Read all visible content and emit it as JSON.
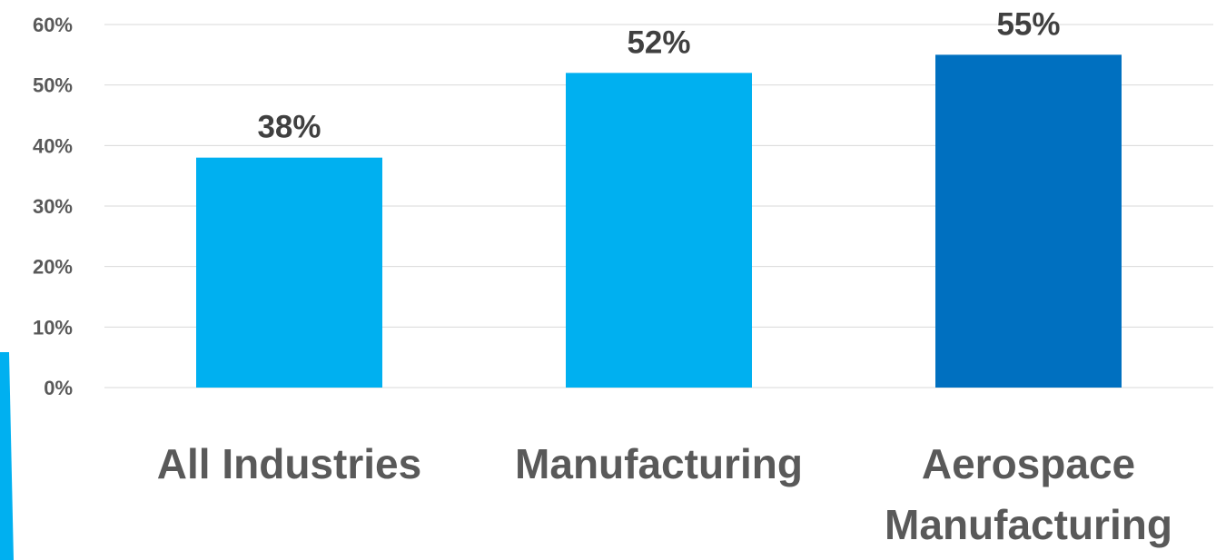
{
  "chart_data": {
    "type": "bar",
    "categories": [
      [
        "All Industries"
      ],
      [
        "Manufacturing"
      ],
      [
        "Aerospace",
        "Manufacturing"
      ]
    ],
    "values": [
      38,
      52,
      55
    ],
    "data_labels": [
      "38%",
      "52%",
      "55%"
    ],
    "ylim": [
      0,
      60
    ],
    "yticks": [
      0,
      10,
      20,
      30,
      40,
      50,
      60
    ],
    "ytick_labels": [
      "0%",
      "10%",
      "20%",
      "30%",
      "40%",
      "50%",
      "60%"
    ],
    "grid": true,
    "legend": "none",
    "title": "",
    "xlabel": "",
    "ylabel": "",
    "colors": [
      "#00B0F0",
      "#00B0F0",
      "#0070C0"
    ],
    "decor_color": "#00B0F0"
  }
}
